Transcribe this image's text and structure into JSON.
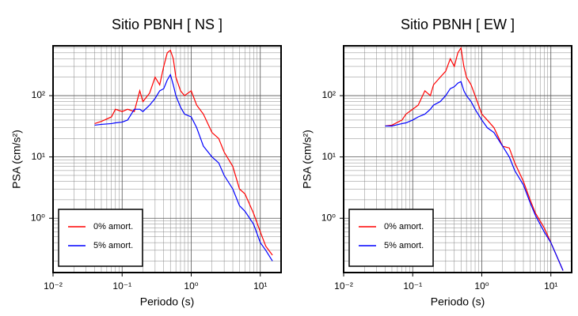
{
  "chart_data": [
    {
      "type": "line",
      "title": "Sitio PBNH [ NS ]",
      "x_label": "Periodo (s)",
      "y_label": "PSA (cm/s²)",
      "log_x": true,
      "log_y": true,
      "grid": true,
      "legend": "lower left",
      "xlim": [
        0.01,
        20
      ],
      "ylim": [
        0.13,
        650
      ],
      "xticks": [
        {
          "value": 0.01,
          "label": "10⁻²"
        },
        {
          "value": 0.1,
          "label": "10⁻¹"
        },
        {
          "value": 1,
          "label": "10⁰"
        },
        {
          "value": 10,
          "label": "10¹"
        }
      ],
      "yticks": [
        {
          "value": 1,
          "label": "10⁰"
        },
        {
          "value": 10,
          "label": "10¹"
        },
        {
          "value": 100,
          "label": "10²"
        }
      ],
      "x": [
        0.04,
        0.05,
        0.07,
        0.08,
        0.1,
        0.12,
        0.15,
        0.18,
        0.2,
        0.25,
        0.3,
        0.35,
        0.4,
        0.45,
        0.5,
        0.55,
        0.6,
        0.7,
        0.8,
        1.0,
        1.2,
        1.5,
        2,
        2.5,
        3,
        4,
        5,
        6,
        8,
        10,
        12,
        15
      ],
      "series": [
        {
          "name": "0% amort.",
          "color": "#ff0000",
          "values": [
            35,
            38,
            45,
            60,
            55,
            60,
            55,
            120,
            80,
            110,
            200,
            150,
            300,
            500,
            550,
            400,
            200,
            120,
            100,
            120,
            70,
            50,
            25,
            20,
            12,
            7,
            3,
            2.5,
            1.2,
            0.6,
            0.35,
            0.25
          ]
        },
        {
          "name": "5% amort.",
          "color": "#0000ff",
          "values": [
            33,
            34,
            35,
            36,
            37,
            40,
            60,
            60,
            55,
            70,
            90,
            120,
            130,
            180,
            220,
            150,
            100,
            65,
            50,
            45,
            30,
            15,
            10,
            8,
            5,
            3,
            1.6,
            1.3,
            0.8,
            0.4,
            0.3,
            0.2
          ]
        }
      ]
    },
    {
      "type": "line",
      "title": "Sitio PBNH [ EW ]",
      "x_label": "Periodo (s)",
      "y_label": "PSA (cm/s²)",
      "log_x": true,
      "log_y": true,
      "grid": true,
      "legend": "lower left",
      "xlim": [
        0.01,
        20
      ],
      "ylim": [
        0.13,
        650
      ],
      "xticks": [
        {
          "value": 0.01,
          "label": "10⁻²"
        },
        {
          "value": 0.1,
          "label": "10⁻¹"
        },
        {
          "value": 1,
          "label": "10⁰"
        },
        {
          "value": 10,
          "label": "10¹"
        }
      ],
      "yticks": [
        {
          "value": 1,
          "label": "10⁰"
        },
        {
          "value": 10,
          "label": "10¹"
        },
        {
          "value": 100,
          "label": "10²"
        }
      ],
      "x": [
        0.04,
        0.05,
        0.07,
        0.08,
        0.1,
        0.12,
        0.15,
        0.18,
        0.2,
        0.25,
        0.3,
        0.35,
        0.4,
        0.45,
        0.5,
        0.55,
        0.6,
        0.7,
        0.8,
        1.0,
        1.2,
        1.5,
        2,
        2.5,
        3,
        4,
        5,
        6,
        8,
        10,
        12,
        15
      ],
      "series": [
        {
          "name": "0% amort.",
          "color": "#ff0000",
          "values": [
            32,
            33,
            40,
            50,
            60,
            70,
            120,
            100,
            150,
            200,
            250,
            400,
            300,
            500,
            600,
            300,
            200,
            150,
            100,
            50,
            40,
            30,
            15,
            14,
            8,
            4,
            2,
            1.2,
            0.7,
            0.4,
            0.25,
            0.14
          ]
        },
        {
          "name": "5% amort.",
          "color": "#0000ff",
          "values": [
            32,
            32,
            35,
            36,
            40,
            45,
            50,
            60,
            70,
            80,
            100,
            130,
            140,
            160,
            170,
            120,
            100,
            80,
            60,
            40,
            30,
            25,
            15,
            10,
            6,
            3.5,
            1.8,
            1.1,
            0.6,
            0.4,
            0.25,
            0.14
          ]
        }
      ]
    }
  ]
}
